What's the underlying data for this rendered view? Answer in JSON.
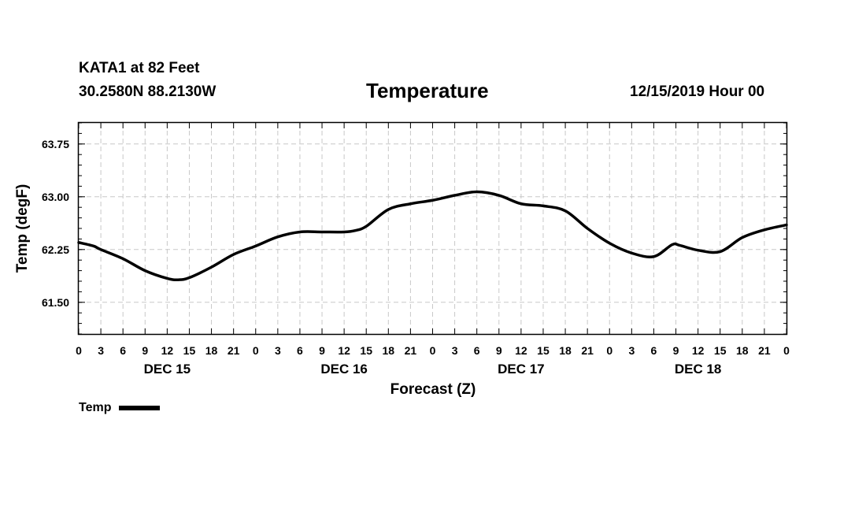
{
  "header": {
    "station": "KATA1 at 82 Feet",
    "coords": "30.2580N 88.2130W",
    "title": "Temperature",
    "run_time": "12/15/2019 Hour 00"
  },
  "legend": {
    "label": "Temp",
    "color": "#000000"
  },
  "chart_data": {
    "type": "line",
    "title": "Temperature",
    "xlabel": "Forecast (Z)",
    "ylabel": "Temp (degF)",
    "xlim": [
      0,
      96
    ],
    "ylim": [
      61.05,
      64.05
    ],
    "y_ticks": [
      61.5,
      62.25,
      63.0,
      63.75
    ],
    "y_tick_labels": [
      "61.50",
      "62.25",
      "63.00",
      "63.75"
    ],
    "x_tick_labels": [
      "0",
      "3",
      "6",
      "9",
      "12",
      "15",
      "18",
      "21",
      "0",
      "3",
      "6",
      "9",
      "12",
      "15",
      "18",
      "21",
      "0",
      "3",
      "6",
      "9",
      "12",
      "15",
      "18",
      "21",
      "0",
      "3",
      "6",
      "9",
      "12",
      "15",
      "18",
      "21",
      "0"
    ],
    "day_labels": [
      {
        "label": "DEC 15",
        "hour": 12
      },
      {
        "label": "DEC 16",
        "hour": 36
      },
      {
        "label": "DEC 17",
        "hour": 60
      },
      {
        "label": "DEC 18",
        "hour": 84
      }
    ],
    "grid": true,
    "series": [
      {
        "name": "Temp",
        "color": "#000000",
        "x": [
          0,
          2,
          3,
          6,
          9,
          12,
          13.5,
          15,
          18,
          21,
          24,
          27,
          30,
          33,
          36,
          37.5,
          39,
          42,
          45,
          48,
          51,
          54,
          57,
          60,
          63,
          66,
          69,
          72,
          75,
          78,
          80.5,
          81.5,
          84,
          87,
          90,
          93,
          96
        ],
        "values": [
          62.35,
          62.3,
          62.25,
          62.12,
          61.95,
          61.84,
          61.82,
          61.85,
          62.0,
          62.18,
          62.3,
          62.43,
          62.5,
          62.5,
          62.5,
          62.52,
          62.58,
          62.82,
          62.9,
          62.95,
          63.02,
          63.07,
          63.02,
          62.9,
          62.87,
          62.8,
          62.55,
          62.34,
          62.2,
          62.15,
          62.32,
          62.31,
          62.24,
          62.22,
          62.42,
          62.53,
          62.6
        ]
      }
    ]
  }
}
